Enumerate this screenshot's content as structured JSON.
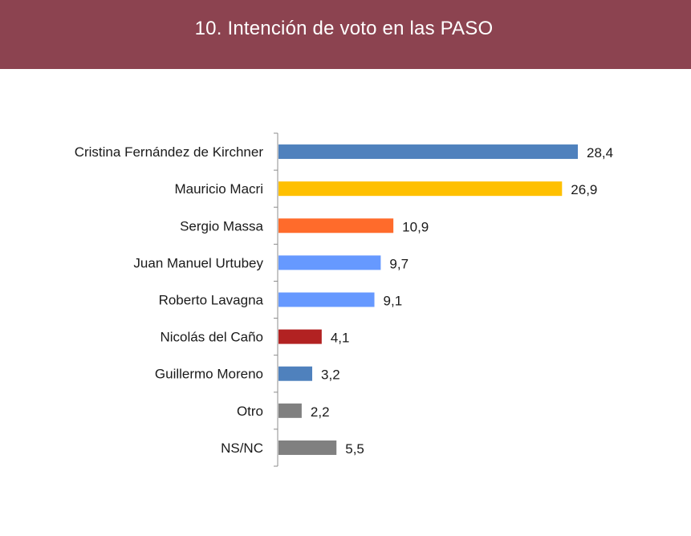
{
  "header": {
    "title": "10. Intención de voto en las PASO"
  },
  "colors": {
    "header_bg": "#8c4350"
  },
  "chart_data": {
    "type": "bar",
    "orientation": "horizontal",
    "title": "10. Intención de voto en las PASO",
    "categories": [
      "Cristina Fernández de Kirchner",
      "Mauricio Macri",
      "Sergio Massa",
      "Juan Manuel Urtubey",
      "Roberto Lavagna",
      "Nicolás del Caño",
      "Guillermo Moreno",
      "Otro",
      "NS/NC"
    ],
    "values": [
      28.4,
      26.9,
      10.9,
      9.7,
      9.1,
      4.1,
      3.2,
      2.2,
      5.5
    ],
    "value_labels": [
      "28,4",
      "26,9",
      "10,9",
      "9,7",
      "9,1",
      "4,1",
      "3,2",
      "2,2",
      "5,5"
    ],
    "bar_colors": [
      "#4f81bd",
      "#ffc000",
      "#ff6b2b",
      "#6699ff",
      "#6699ff",
      "#b22222",
      "#4f81bd",
      "#808080",
      "#808080"
    ],
    "xlim": [
      0,
      30
    ],
    "grid": false,
    "legend": "none"
  }
}
